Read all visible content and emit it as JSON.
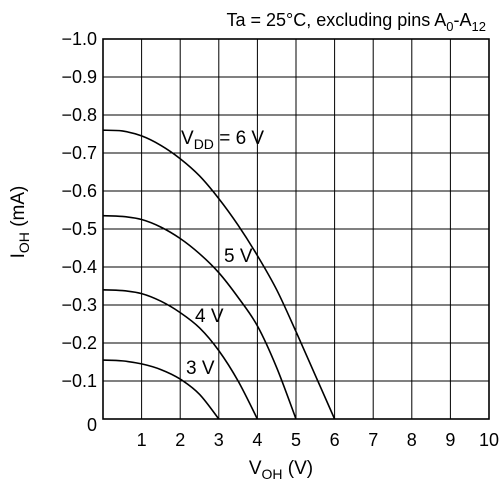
{
  "chart_data": {
    "type": "line",
    "title": {
      "main": "Ta = 25°C, excluding pins A",
      "sub1": "0",
      "dash": "-A",
      "sub2": "12"
    },
    "xlabel": {
      "main": "V",
      "sub": "OH",
      "unit": " (V)"
    },
    "ylabel": {
      "main": "I",
      "sub": "OH",
      "unit": " (mA)"
    },
    "xlim": [
      0,
      10
    ],
    "ylim": [
      0,
      -1.0
    ],
    "xticks": [
      0,
      1,
      2,
      3,
      4,
      5,
      6,
      7,
      8,
      9,
      10
    ],
    "xtick_labels": [
      "0",
      "1",
      "2",
      "3",
      "4",
      "5",
      "6",
      "7",
      "8",
      "9",
      "10"
    ],
    "yticks": [
      0,
      -0.1,
      -0.2,
      -0.3,
      -0.4,
      -0.5,
      -0.6,
      -0.7,
      -0.8,
      -0.9,
      -1.0
    ],
    "ytick_labels": [
      "0",
      "−0.1",
      "−0.2",
      "−0.3",
      "−0.4",
      "−0.5",
      "−0.6",
      "−0.7",
      "−0.8",
      "−0.9",
      "−1.0"
    ],
    "grid": true,
    "series": [
      {
        "label": {
          "main": "V",
          "sub": "DD",
          "rest": " = 6 V"
        },
        "points": [
          [
            0,
            -0.76
          ],
          [
            0.5,
            -0.758
          ],
          [
            1,
            -0.745
          ],
          [
            1.5,
            -0.72
          ],
          [
            2,
            -0.685
          ],
          [
            2.5,
            -0.64
          ],
          [
            3,
            -0.58
          ],
          [
            3.5,
            -0.51
          ],
          [
            4,
            -0.43
          ],
          [
            4.5,
            -0.34
          ],
          [
            5,
            -0.23
          ],
          [
            5.5,
            -0.115
          ],
          [
            6,
            0
          ]
        ]
      },
      {
        "label": {
          "main": "5 V"
        },
        "points": [
          [
            0,
            -0.535
          ],
          [
            0.5,
            -0.533
          ],
          [
            1,
            -0.525
          ],
          [
            1.5,
            -0.505
          ],
          [
            2,
            -0.475
          ],
          [
            2.5,
            -0.435
          ],
          [
            3,
            -0.385
          ],
          [
            3.5,
            -0.32
          ],
          [
            4,
            -0.245
          ],
          [
            4.5,
            -0.135
          ],
          [
            5,
            0
          ]
        ]
      },
      {
        "label": {
          "main": "4 V"
        },
        "points": [
          [
            0,
            -0.34
          ],
          [
            0.5,
            -0.338
          ],
          [
            1,
            -0.33
          ],
          [
            1.5,
            -0.31
          ],
          [
            2,
            -0.28
          ],
          [
            2.5,
            -0.24
          ],
          [
            3,
            -0.18
          ],
          [
            3.5,
            -0.1
          ],
          [
            4,
            0
          ]
        ]
      },
      {
        "label": {
          "main": "3 V"
        },
        "points": [
          [
            0,
            -0.155
          ],
          [
            0.5,
            -0.153
          ],
          [
            1,
            -0.145
          ],
          [
            1.5,
            -0.13
          ],
          [
            2,
            -0.105
          ],
          [
            2.5,
            -0.065
          ],
          [
            3,
            0
          ]
        ]
      }
    ]
  }
}
